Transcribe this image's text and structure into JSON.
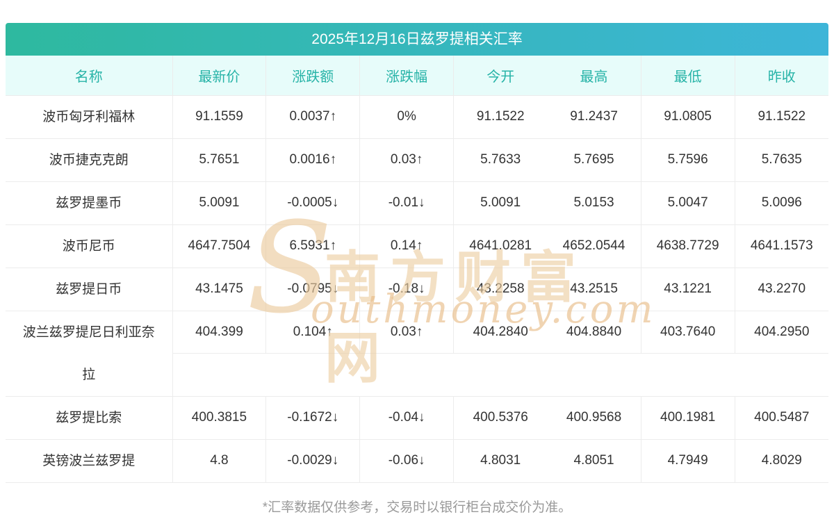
{
  "title": "2025年12月16日兹罗提相关汇率",
  "colors": {
    "title_gradient_start": "#2eb99f",
    "title_gradient_end": "#3db5d8",
    "header_bg": "#e7fcfa",
    "header_text": "#26b3a7",
    "up_red": "#f22b2b",
    "down_green": "#16a34a",
    "text_dark": "#333333",
    "border": "#ececec"
  },
  "table": {
    "headers": [
      "名称",
      "最新价",
      "涨跌额",
      "涨跌幅",
      "今开",
      "最高",
      "最低",
      "昨收"
    ],
    "rows": [
      {
        "name": "波币匈牙利福林",
        "latest": "91.1559",
        "latest_color": "black",
        "change": "0.0037↑",
        "change_color": "red",
        "pct": "0%",
        "pct_color": "black",
        "open": "91.1522",
        "high": "91.2437",
        "low": "91.0805",
        "prev": "91.1522"
      },
      {
        "name": "波币捷克克朗",
        "latest": "5.7651",
        "latest_color": "red",
        "change": "0.0016↑",
        "change_color": "red",
        "pct": "0.03↑",
        "pct_color": "red",
        "open": "5.7633",
        "high": "5.7695",
        "low": "5.7596",
        "prev": "5.7635"
      },
      {
        "name": "兹罗提墨币",
        "latest": "5.0091",
        "latest_color": "green",
        "change": "-0.0005↓",
        "change_color": "green",
        "pct": "-0.01↓",
        "pct_color": "green",
        "open": "5.0091",
        "high": "5.0153",
        "low": "5.0047",
        "prev": "5.0096"
      },
      {
        "name": "波币尼币",
        "latest": "4647.7504",
        "latest_color": "red",
        "change": "6.5931↑",
        "change_color": "red",
        "pct": "0.14↑",
        "pct_color": "red",
        "open": "4641.0281",
        "high": "4652.0544",
        "low": "4638.7729",
        "prev": "4641.1573"
      },
      {
        "name": "兹罗提日币",
        "latest": "43.1475",
        "latest_color": "green",
        "change": "-0.0795↓",
        "change_color": "green",
        "pct": "-0.18↓",
        "pct_color": "green",
        "open": "43.2258",
        "high": "43.2515",
        "low": "43.1221",
        "prev": "43.2270"
      },
      {
        "name": "波兰兹罗提尼日利亚奈拉",
        "latest": "404.399",
        "latest_color": "red",
        "change": "0.104↑",
        "change_color": "red",
        "pct": "0.03↑",
        "pct_color": "red",
        "open": "404.2840",
        "high": "404.8840",
        "low": "403.7640",
        "prev": "404.2950"
      },
      {
        "name": "兹罗提比索",
        "latest": "400.3815",
        "latest_color": "green",
        "change": "-0.1672↓",
        "change_color": "green",
        "pct": "-0.04↓",
        "pct_color": "green",
        "open": "400.5376",
        "high": "400.9568",
        "low": "400.1981",
        "prev": "400.5487"
      },
      {
        "name": "英镑波兰兹罗提",
        "latest": "4.8",
        "latest_color": "green",
        "change": "-0.0029↓",
        "change_color": "green",
        "pct": "-0.06↓",
        "pct_color": "green",
        "open": "4.8031",
        "high": "4.8051",
        "low": "4.7949",
        "prev": "4.8029"
      }
    ]
  },
  "watermark": {
    "logo": "S",
    "text_cn": "南方财富网",
    "text_en": "outhmoney.com"
  },
  "footer": "*汇率数据仅供参考，交易时以银行柜台成交价为准。"
}
